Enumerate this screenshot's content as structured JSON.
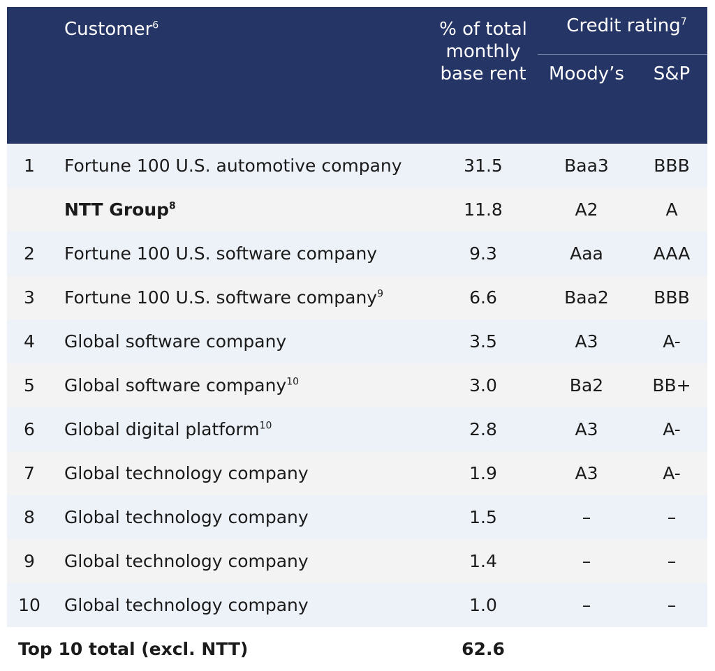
{
  "header": {
    "customer": "Customer",
    "customer_note": "6",
    "pct": "% of total monthly base rent",
    "credit_rating": "Credit rating",
    "credit_note": "7",
    "moodys": "Moody’s",
    "sp": "S&P"
  },
  "rows": [
    {
      "num": "1",
      "name": "Fortune 100 U.S. automotive company",
      "note": "",
      "pct": "31.5",
      "moodys": "Baa3",
      "sp": "BBB"
    },
    {
      "num": "",
      "name": "NTT Group",
      "note": "8",
      "pct": "11.8",
      "moodys": "A2",
      "sp": "A"
    },
    {
      "num": "2",
      "name": "Fortune 100 U.S. software company",
      "note": "",
      "pct": "9.3",
      "moodys": "Aaa",
      "sp": "AAA"
    },
    {
      "num": "3",
      "name": "Fortune 100 U.S. software company",
      "note": "9",
      "pct": "6.6",
      "moodys": "Baa2",
      "sp": "BBB"
    },
    {
      "num": "4",
      "name": "Global software company",
      "note": "",
      "pct": "3.5",
      "moodys": "A3",
      "sp": "A-"
    },
    {
      "num": "5",
      "name": "Global software company",
      "note": "10",
      "pct": "3.0",
      "moodys": "Ba2",
      "sp": "BB+"
    },
    {
      "num": "6",
      "name": "Global digital platform",
      "note": "10",
      "pct": "2.8",
      "moodys": "A3",
      "sp": "A-"
    },
    {
      "num": "7",
      "name": "Global technology company",
      "note": "",
      "pct": "1.9",
      "moodys": "A3",
      "sp": "A-"
    },
    {
      "num": "8",
      "name": "Global technology company",
      "note": "",
      "pct": "1.5",
      "moodys": "–",
      "sp": "–"
    },
    {
      "num": "9",
      "name": "Global technology company",
      "note": "",
      "pct": "1.4",
      "moodys": "–",
      "sp": "–"
    },
    {
      "num": "10",
      "name": "Global technology company",
      "note": "",
      "pct": "1.0",
      "moodys": "–",
      "sp": "–"
    }
  ],
  "total": {
    "label": "Top 10 total (excl. NTT)",
    "pct": "62.6"
  }
}
